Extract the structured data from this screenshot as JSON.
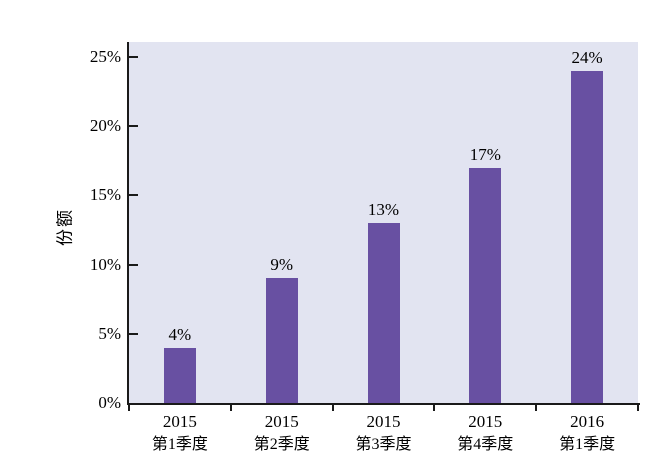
{
  "chart_data": {
    "type": "bar",
    "title": "",
    "xlabel": "",
    "ylabel": "份额",
    "categories": [
      "2015 第1季度",
      "2015 第2季度",
      "2015 第3季度",
      "2015 第4季度",
      "2016 第1季度"
    ],
    "categories_lines": [
      [
        "2015",
        "第1季度"
      ],
      [
        "2015",
        "第2季度"
      ],
      [
        "2015",
        "第3季度"
      ],
      [
        "2015",
        "第4季度"
      ],
      [
        "2016",
        "第1季度"
      ]
    ],
    "values": [
      4,
      9,
      13,
      17,
      24
    ],
    "value_labels": [
      "4%",
      "9%",
      "13%",
      "17%",
      "24%"
    ],
    "ylim": [
      0,
      25
    ],
    "ytick_step": 5,
    "ytick_labels": [
      "0%",
      "5%",
      "10%",
      "15%",
      "20%",
      "25%"
    ],
    "grid": false,
    "legend": false,
    "colors": {
      "bar": "#6850A2",
      "plot_background": "#E2E4F1",
      "axis": "#1A1A1A",
      "text": "#000000",
      "page_background": "#FFFFFF"
    }
  }
}
